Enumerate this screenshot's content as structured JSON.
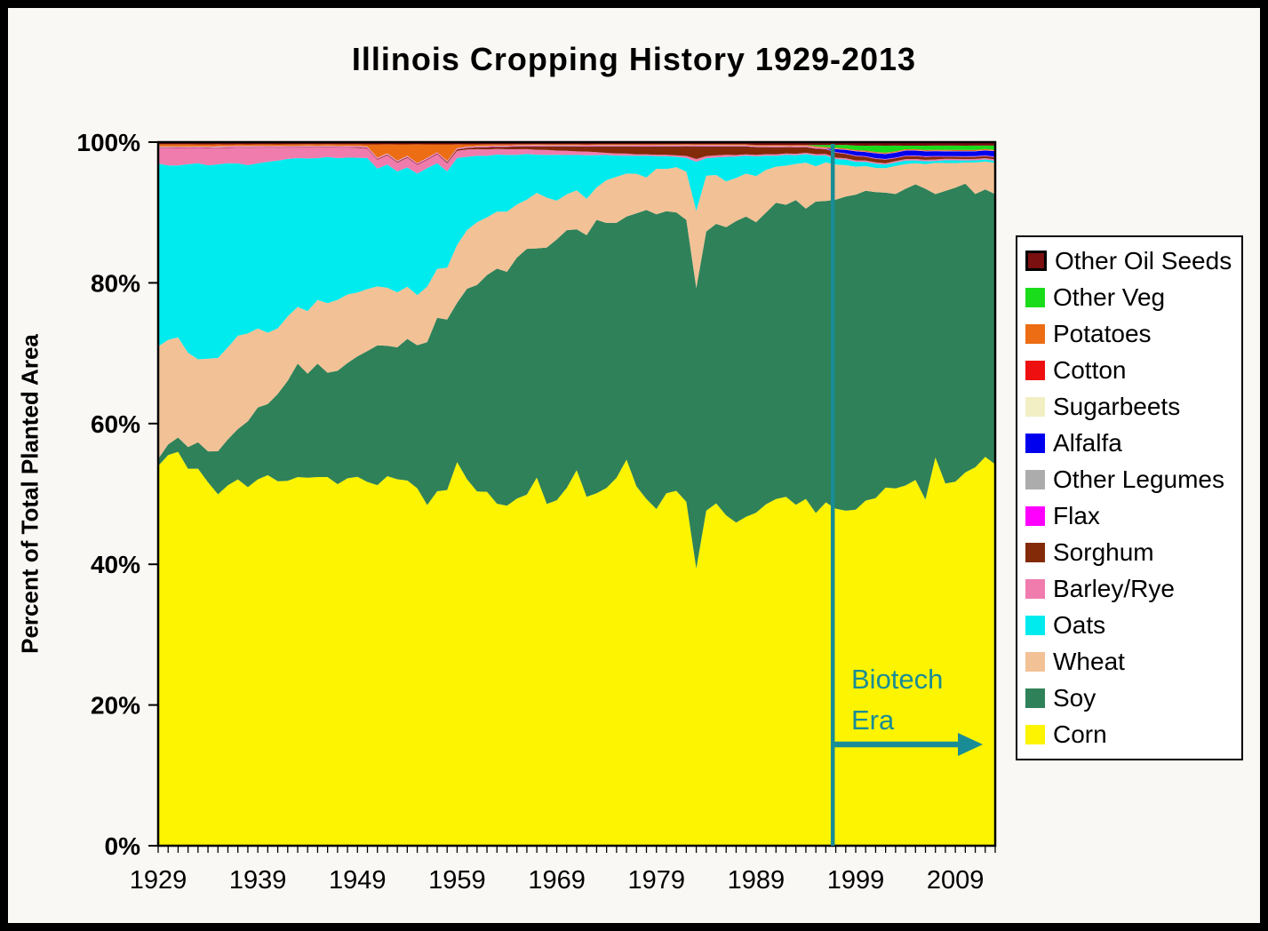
{
  "chart_data": {
    "type": "area",
    "stacked": true,
    "normalized_to_100_percent": true,
    "title": "Illinois Cropping History 1929-2013",
    "y_axis_title": "Percent of Total Planted Area",
    "x_start": 1929,
    "x_end": 2013,
    "ylim": [
      0,
      100
    ],
    "grid": false,
    "legend_position": "right",
    "y_tick_labels": [
      "0%",
      "20%",
      "40%",
      "60%",
      "80%",
      "100%"
    ],
    "x_tick_labels": [
      1929,
      1939,
      1949,
      1959,
      1969,
      1979,
      1989,
      1999,
      2009
    ],
    "annotation": {
      "line1": "Biotech",
      "line2": "Era",
      "year": 1996.7,
      "color": "#1A8C96",
      "arrow": "right"
    },
    "legend": [
      {
        "name": "Other Oil Seeds",
        "color": "#7A1010",
        "bordered": true,
        "values": [
          0.3,
          0.3,
          0.3,
          0.3,
          0.3,
          0.3,
          0.3,
          0.3,
          0.3,
          0.3,
          0.3,
          0.3,
          0.3,
          0.3,
          0.3,
          0.3,
          0.3,
          0.3,
          0.3,
          0.3,
          0.3,
          0.3,
          0.3,
          0.3,
          0.3,
          0.3,
          0.3,
          0.3,
          0.3,
          0.3,
          0.3,
          0.3,
          0.3,
          0.3,
          0.3,
          0.3,
          0.3,
          0.3,
          0.3,
          0.3,
          0.3,
          0.3,
          0.3,
          0.3,
          0.3,
          0.3,
          0.3,
          0.3,
          0.3,
          0.3,
          0.3,
          0.3,
          0.3,
          0.3,
          0.3,
          0.3,
          0.3,
          0.3,
          0.3,
          0.3,
          0.4,
          0.4,
          0.4,
          0.4,
          0.4,
          0.4,
          0.4,
          0.4,
          0.4,
          0.4,
          0.5,
          0.5,
          0.5,
          0.5,
          0.5,
          0.5,
          0.5,
          0.5,
          0.5,
          0.5,
          0.5,
          0.5,
          0.5,
          0.5,
          0.5
        ]
      },
      {
        "name": "Other Veg",
        "color": "#1ADC1A",
        "values": [
          0,
          0,
          0,
          0,
          0,
          0,
          0,
          0,
          0,
          0,
          0,
          0,
          0,
          0,
          0,
          0,
          0,
          0,
          0,
          0,
          0,
          0,
          0,
          0,
          0,
          0,
          0,
          0,
          0,
          0,
          0,
          0,
          0,
          0,
          0,
          0,
          0,
          0,
          0,
          0,
          0,
          0,
          0,
          0,
          0,
          0,
          0,
          0,
          0,
          0,
          0,
          0,
          0,
          0,
          0,
          0,
          0,
          0,
          0,
          0,
          0,
          0,
          0,
          0,
          0,
          0,
          0.2,
          0.3,
          0.4,
          0.5,
          0.6,
          0.7,
          0.9,
          1,
          0.8,
          0.5,
          0.5,
          0.6,
          0.6,
          0.6,
          0.6,
          0.6,
          0.6,
          0.5,
          0.6
        ]
      },
      {
        "name": "Potatoes",
        "color": "#EC6D14",
        "values": [
          0.3,
          0.3,
          0.3,
          0.3,
          0.25,
          0.25,
          0.25,
          0.2,
          0.2,
          0.2,
          0.2,
          0.2,
          0.2,
          0.2,
          0.2,
          0.2,
          0.2,
          0.2,
          0.2,
          0.2,
          0.2,
          0.3,
          1.8,
          1.2,
          2.2,
          1.5,
          2.6,
          1.8,
          1,
          2.2,
          0.5,
          0.3,
          0.2,
          0.2,
          0.15,
          0.15,
          0.1,
          0.1,
          0.1,
          0.1,
          0.1,
          0.1,
          0.1,
          0.1,
          0.1,
          0.1,
          0.1,
          0.1,
          0.1,
          0.1,
          0.1,
          0.1,
          0.1,
          0.1,
          0.1,
          0.1,
          0.1,
          0.1,
          0.1,
          0.1,
          0.1,
          0.1,
          0.1,
          0.1,
          0.1,
          0.1,
          0.1,
          0.1,
          0.1,
          0.1,
          0.1,
          0.1,
          0.1,
          0.1,
          0.1,
          0.1,
          0.1,
          0.1,
          0.1,
          0.1,
          0.1,
          0.1,
          0.1,
          0.1,
          0.1
        ]
      },
      {
        "name": "Cotton",
        "color": "#EE1010",
        "constant": 0.05
      },
      {
        "name": "Sugarbeets",
        "color": "#F2EFC4",
        "constant": 0.05
      },
      {
        "name": "Alfalfa",
        "color": "#0000EE",
        "values": [
          0,
          0,
          0,
          0,
          0,
          0,
          0,
          0,
          0,
          0,
          0,
          0,
          0,
          0,
          0,
          0,
          0,
          0,
          0,
          0,
          0,
          0,
          0,
          0,
          0,
          0,
          0,
          0,
          0,
          0,
          0,
          0,
          0,
          0,
          0,
          0,
          0,
          0,
          0,
          0,
          0,
          0,
          0,
          0,
          0,
          0,
          0,
          0,
          0,
          0,
          0,
          0,
          0,
          0,
          0,
          0,
          0,
          0,
          0,
          0,
          0,
          0,
          0,
          0,
          0,
          0,
          0,
          0,
          0.4,
          0.5,
          0.6,
          0.6,
          0.7,
          0.7,
          0.7,
          0.7,
          0.7,
          0.7,
          0.7,
          0.7,
          0.7,
          0.7,
          0.7,
          0.7,
          0.8
        ]
      },
      {
        "name": "Other Legumes",
        "color": "#ACACAC",
        "constant": 0.05
      },
      {
        "name": "Flax",
        "color": "#FF00FF",
        "constant": 0.05
      },
      {
        "name": "Sorghum",
        "color": "#832B08",
        "values": [
          0.05,
          0.05,
          0.05,
          0.05,
          0.05,
          0.05,
          0.05,
          0.05,
          0.05,
          0.05,
          0.05,
          0.05,
          0.05,
          0.05,
          0.05,
          0.05,
          0.05,
          0.05,
          0.05,
          0.05,
          0.1,
          0.1,
          0.1,
          0.1,
          0.1,
          0.1,
          0.1,
          0.1,
          0.1,
          0.15,
          0.2,
          0.2,
          0.25,
          0.3,
          0.3,
          0.35,
          0.4,
          0.4,
          0.5,
          0.5,
          0.6,
          0.6,
          0.7,
          0.7,
          0.8,
          0.9,
          1,
          1,
          1.1,
          1.1,
          1.2,
          1.2,
          1.3,
          1.4,
          1.8,
          1.4,
          1.3,
          1.2,
          1.2,
          1.1,
          1.1,
          1,
          1,
          0.9,
          0.9,
          0.8,
          0.8,
          0.7,
          0.7,
          0.6,
          0.6,
          0.5,
          0.5,
          0.5,
          0.4,
          0.4,
          0.4,
          0.4,
          0.4,
          0.3,
          0.3,
          0.3,
          0.3,
          0.3,
          0.3
        ]
      },
      {
        "name": "Barley/Rye",
        "color": "#F07CAE",
        "values": [
          2.2,
          2.5,
          2.4,
          2.2,
          2,
          2.2,
          2.3,
          2,
          2.2,
          2.4,
          2.2,
          2,
          1.8,
          1.6,
          1.5,
          1.6,
          1.5,
          1.4,
          1.5,
          1.4,
          1.4,
          1.3,
          1.2,
          1.3,
          1.2,
          1.3,
          1.2,
          1.1,
          1.2,
          1.1,
          1,
          1,
          0.9,
          0.9,
          0.8,
          0.8,
          0.8,
          0.7,
          0.7,
          0.7,
          0.6,
          0.6,
          0.5,
          0.5,
          0.4,
          0.3,
          0.3,
          0.3,
          0.2,
          0.2,
          0.2,
          0.2,
          0.2,
          0.3,
          0.4,
          0.3,
          0.3,
          0.3,
          0.2,
          0.2,
          0.2,
          0.2,
          0.2,
          0.2,
          0.2,
          0.2,
          0.2,
          0.2,
          0.2,
          0.2,
          0.2,
          0.2,
          0.2,
          0.2,
          0.2,
          0.2,
          0.2,
          0.2,
          0.2,
          0.2,
          0.2,
          0.2,
          0.2,
          0.2,
          0.2
        ]
      },
      {
        "name": "Oats",
        "color": "#00EBEE",
        "values": [
          26,
          25,
          24,
          26,
          26,
          25,
          27,
          24,
          24,
          23,
          23,
          24,
          23,
          22,
          21,
          22,
          20,
          21,
          20,
          19,
          19,
          18,
          16,
          17,
          16.5,
          16,
          17,
          16,
          14,
          13,
          12,
          10,
          9,
          8.5,
          8,
          8,
          7,
          6.5,
          5.5,
          6,
          6.5,
          5.5,
          5,
          6,
          4.5,
          3.5,
          3,
          2.5,
          2.5,
          3,
          1.8,
          1.8,
          1.5,
          2,
          7,
          2.5,
          2.5,
          3.5,
          3,
          2.5,
          2.8,
          2,
          1.5,
          1.5,
          1.2,
          1.2,
          1.5,
          1,
          0.8,
          0.8,
          0.7,
          0.6,
          0.6,
          0.5,
          0.5,
          0.5,
          0.4,
          0.4,
          0.3,
          0.4,
          0.4,
          0.3,
          0.3,
          0.3,
          0.3
        ]
      },
      {
        "name": "Wheat",
        "color": "#F2C196",
        "values": [
          16,
          15,
          14,
          13,
          11,
          12,
          13,
          12,
          13,
          12,
          11,
          10,
          9,
          9,
          8,
          9,
          9,
          10,
          10,
          9.5,
          9,
          8.5,
          8,
          8,
          7.5,
          7,
          7,
          7.5,
          6.5,
          7,
          8,
          8,
          8.5,
          8,
          8,
          8.5,
          7.5,
          7,
          8,
          7,
          5.5,
          5,
          5.5,
          5,
          4.5,
          6,
          6.5,
          6,
          5.5,
          4.5,
          6.5,
          6,
          6.5,
          7,
          11,
          8,
          7,
          6.5,
          6,
          6,
          6.5,
          6,
          5,
          5.5,
          5,
          6.5,
          5,
          5.5,
          5,
          4.5,
          4,
          3.5,
          3.5,
          3.5,
          4,
          3.5,
          3,
          3.5,
          4.5,
          4,
          3.5,
          3,
          4.5,
          4,
          4.5
        ]
      },
      {
        "name": "Soy",
        "color": "#2F8159",
        "values": [
          1,
          1.5,
          2,
          3,
          3.5,
          4,
          6,
          6,
          7,
          9,
          10,
          10,
          12,
          14,
          16,
          15,
          16,
          15,
          16,
          16,
          17,
          18,
          19,
          18,
          18,
          19,
          20,
          22,
          23,
          23,
          22,
          26,
          28,
          30,
          33,
          33,
          34,
          35,
          33,
          36,
          37,
          36,
          34,
          36,
          38,
          37,
          36,
          34,
          38,
          40,
          42,
          40,
          40,
          41,
          40,
          40,
          40,
          41,
          42,
          42,
          41,
          41,
          41,
          41,
          42,
          41,
          44,
          43,
          44,
          45,
          45,
          44,
          44,
          42,
          42,
          42,
          42,
          44,
          38,
          42,
          42,
          41,
          39,
          38.5,
          39
        ]
      },
      {
        "name": "Corn",
        "color": "#FCF400",
        "values": [
          54,
          56,
          55,
          52,
          50,
          47,
          49,
          47,
          51,
          49,
          51,
          52,
          50,
          51,
          52,
          53,
          52,
          53,
          51,
          51,
          52,
          50,
          49,
          51,
          50,
          49,
          50,
          46,
          47,
          48,
          53,
          50,
          48,
          49,
          48,
          48,
          49,
          50,
          53,
          48,
          49,
          50,
          53,
          48,
          49,
          50,
          52,
          54,
          50,
          48,
          48,
          50,
          51,
          50,
          39.5,
          48,
          49,
          47,
          45,
          46,
          47,
          48,
          48,
          49,
          47,
          49,
          47,
          49,
          48,
          48,
          48,
          49,
          50,
          51,
          51,
          51,
          52,
          49,
          56,
          52,
          52,
          53,
          54,
          56,
          55
        ]
      }
    ]
  }
}
